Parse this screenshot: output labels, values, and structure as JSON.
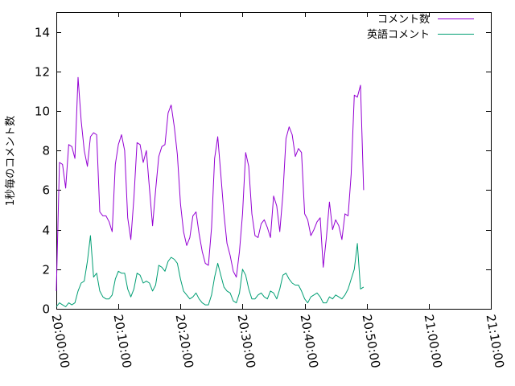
{
  "chart_data": {
    "type": "line",
    "ylabel": "1秒毎のコメント数",
    "xlim": [
      "20:00:00",
      "21:10:00"
    ],
    "ylim": [
      0,
      15
    ],
    "x_ticks": [
      "20:00:00",
      "20:10:00",
      "20:20:00",
      "20:30:00",
      "20:40:00",
      "20:50:00",
      "21:00:00",
      "21:10:00"
    ],
    "y_ticks": [
      0,
      2,
      4,
      6,
      8,
      10,
      12,
      14
    ],
    "grid": false,
    "legend_position": "top-right",
    "series": [
      {
        "name": "コメント数",
        "color": "#9400d3",
        "points": [
          [
            "20:00:00",
            0.9
          ],
          [
            "20:00:30",
            7.4
          ],
          [
            "20:01:00",
            7.3
          ],
          [
            "20:01:30",
            6.1
          ],
          [
            "20:02:00",
            8.3
          ],
          [
            "20:02:30",
            8.2
          ],
          [
            "20:03:00",
            7.6
          ],
          [
            "20:03:30",
            11.7
          ],
          [
            "20:04:00",
            9.5
          ],
          [
            "20:04:30",
            8.0
          ],
          [
            "20:05:00",
            7.2
          ],
          [
            "20:05:30",
            8.7
          ],
          [
            "20:06:00",
            8.9
          ],
          [
            "20:06:30",
            8.8
          ],
          [
            "20:07:00",
            4.9
          ],
          [
            "20:07:30",
            4.7
          ],
          [
            "20:08:00",
            4.7
          ],
          [
            "20:08:30",
            4.4
          ],
          [
            "20:09:00",
            3.9
          ],
          [
            "20:09:30",
            7.3
          ],
          [
            "20:10:00",
            8.3
          ],
          [
            "20:10:30",
            8.8
          ],
          [
            "20:11:00",
            8.0
          ],
          [
            "20:11:30",
            4.6
          ],
          [
            "20:12:00",
            3.5
          ],
          [
            "20:12:30",
            5.6
          ],
          [
            "20:13:00",
            8.4
          ],
          [
            "20:13:30",
            8.3
          ],
          [
            "20:14:00",
            7.4
          ],
          [
            "20:14:30",
            8.0
          ],
          [
            "20:15:00",
            6.1
          ],
          [
            "20:15:30",
            4.2
          ],
          [
            "20:16:00",
            6.0
          ],
          [
            "20:16:30",
            7.7
          ],
          [
            "20:17:00",
            8.2
          ],
          [
            "20:17:30",
            8.3
          ],
          [
            "20:18:00",
            9.9
          ],
          [
            "20:18:30",
            10.3
          ],
          [
            "20:19:00",
            9.2
          ],
          [
            "20:19:30",
            7.8
          ],
          [
            "20:20:00",
            5.3
          ],
          [
            "20:20:30",
            3.9
          ],
          [
            "20:21:00",
            3.2
          ],
          [
            "20:21:30",
            3.6
          ],
          [
            "20:22:00",
            4.7
          ],
          [
            "20:22:30",
            4.9
          ],
          [
            "20:23:00",
            3.8
          ],
          [
            "20:23:30",
            2.9
          ],
          [
            "20:24:00",
            2.3
          ],
          [
            "20:24:30",
            2.2
          ],
          [
            "20:25:00",
            4.1
          ],
          [
            "20:25:30",
            7.6
          ],
          [
            "20:26:00",
            8.7
          ],
          [
            "20:26:30",
            6.8
          ],
          [
            "20:27:00",
            4.8
          ],
          [
            "20:27:30",
            3.3
          ],
          [
            "20:28:00",
            2.7
          ],
          [
            "20:28:30",
            1.9
          ],
          [
            "20:29:00",
            1.6
          ],
          [
            "20:29:30",
            2.9
          ],
          [
            "20:30:00",
            4.8
          ],
          [
            "20:30:30",
            7.9
          ],
          [
            "20:31:00",
            7.2
          ],
          [
            "20:31:30",
            4.8
          ],
          [
            "20:32:00",
            3.7
          ],
          [
            "20:32:30",
            3.6
          ],
          [
            "20:33:00",
            4.3
          ],
          [
            "20:33:30",
            4.5
          ],
          [
            "20:34:00",
            4.1
          ],
          [
            "20:34:30",
            3.6
          ],
          [
            "20:35:00",
            5.7
          ],
          [
            "20:35:30",
            5.2
          ],
          [
            "20:36:00",
            3.9
          ],
          [
            "20:36:30",
            5.8
          ],
          [
            "20:37:00",
            8.6
          ],
          [
            "20:37:30",
            9.2
          ],
          [
            "20:38:00",
            8.8
          ],
          [
            "20:38:30",
            7.7
          ],
          [
            "20:39:00",
            8.1
          ],
          [
            "20:39:30",
            7.9
          ],
          [
            "20:40:00",
            4.8
          ],
          [
            "20:40:30",
            4.5
          ],
          [
            "20:41:00",
            3.7
          ],
          [
            "20:41:30",
            4.0
          ],
          [
            "20:42:00",
            4.4
          ],
          [
            "20:42:30",
            4.6
          ],
          [
            "20:43:00",
            2.1
          ],
          [
            "20:43:30",
            3.6
          ],
          [
            "20:44:00",
            5.4
          ],
          [
            "20:44:30",
            4.0
          ],
          [
            "20:45:00",
            4.5
          ],
          [
            "20:45:30",
            4.2
          ],
          [
            "20:46:00",
            3.5
          ],
          [
            "20:46:30",
            4.8
          ],
          [
            "20:47:00",
            4.7
          ],
          [
            "20:47:30",
            6.8
          ],
          [
            "20:48:00",
            10.8
          ],
          [
            "20:48:30",
            10.7
          ],
          [
            "20:49:00",
            11.3
          ],
          [
            "20:49:30",
            6.0
          ]
        ]
      },
      {
        "name": "英語コメント",
        "color": "#009e73",
        "points": [
          [
            "20:00:00",
            0.1
          ],
          [
            "20:00:30",
            0.3
          ],
          [
            "20:01:00",
            0.2
          ],
          [
            "20:01:30",
            0.1
          ],
          [
            "20:02:00",
            0.3
          ],
          [
            "20:02:30",
            0.2
          ],
          [
            "20:03:00",
            0.3
          ],
          [
            "20:03:30",
            0.9
          ],
          [
            "20:04:00",
            1.3
          ],
          [
            "20:04:30",
            1.4
          ],
          [
            "20:05:00",
            2.4
          ],
          [
            "20:05:30",
            3.7
          ],
          [
            "20:06:00",
            1.6
          ],
          [
            "20:06:30",
            1.8
          ],
          [
            "20:07:00",
            0.9
          ],
          [
            "20:07:30",
            0.6
          ],
          [
            "20:08:00",
            0.5
          ],
          [
            "20:08:30",
            0.5
          ],
          [
            "20:09:00",
            0.7
          ],
          [
            "20:09:30",
            1.5
          ],
          [
            "20:10:00",
            1.9
          ],
          [
            "20:10:30",
            1.8
          ],
          [
            "20:11:00",
            1.8
          ],
          [
            "20:11:30",
            1.0
          ],
          [
            "20:12:00",
            0.6
          ],
          [
            "20:12:30",
            1.0
          ],
          [
            "20:13:00",
            1.8
          ],
          [
            "20:13:30",
            1.7
          ],
          [
            "20:14:00",
            1.3
          ],
          [
            "20:14:30",
            1.4
          ],
          [
            "20:15:00",
            1.3
          ],
          [
            "20:15:30",
            0.9
          ],
          [
            "20:16:00",
            1.2
          ],
          [
            "20:16:30",
            2.2
          ],
          [
            "20:17:00",
            2.1
          ],
          [
            "20:17:30",
            1.9
          ],
          [
            "20:18:00",
            2.4
          ],
          [
            "20:18:30",
            2.6
          ],
          [
            "20:19:00",
            2.5
          ],
          [
            "20:19:30",
            2.3
          ],
          [
            "20:20:00",
            1.5
          ],
          [
            "20:20:30",
            0.9
          ],
          [
            "20:21:00",
            0.7
          ],
          [
            "20:21:30",
            0.5
          ],
          [
            "20:22:00",
            0.6
          ],
          [
            "20:22:30",
            0.8
          ],
          [
            "20:23:00",
            0.5
          ],
          [
            "20:23:30",
            0.3
          ],
          [
            "20:24:00",
            0.2
          ],
          [
            "20:24:30",
            0.2
          ],
          [
            "20:25:00",
            0.7
          ],
          [
            "20:25:30",
            1.6
          ],
          [
            "20:26:00",
            2.3
          ],
          [
            "20:26:30",
            1.7
          ],
          [
            "20:27:00",
            1.1
          ],
          [
            "20:27:30",
            0.9
          ],
          [
            "20:28:00",
            0.8
          ],
          [
            "20:28:30",
            0.4
          ],
          [
            "20:29:00",
            0.3
          ],
          [
            "20:29:30",
            0.8
          ],
          [
            "20:30:00",
            2.0
          ],
          [
            "20:30:30",
            1.7
          ],
          [
            "20:31:00",
            1.0
          ],
          [
            "20:31:30",
            0.5
          ],
          [
            "20:32:00",
            0.5
          ],
          [
            "20:32:30",
            0.7
          ],
          [
            "20:33:00",
            0.8
          ],
          [
            "20:33:30",
            0.6
          ],
          [
            "20:34:00",
            0.5
          ],
          [
            "20:34:30",
            0.9
          ],
          [
            "20:35:00",
            0.8
          ],
          [
            "20:35:30",
            0.5
          ],
          [
            "20:36:00",
            1.0
          ],
          [
            "20:36:30",
            1.7
          ],
          [
            "20:37:00",
            1.8
          ],
          [
            "20:37:30",
            1.5
          ],
          [
            "20:38:00",
            1.3
          ],
          [
            "20:38:30",
            1.2
          ],
          [
            "20:39:00",
            1.2
          ],
          [
            "20:39:30",
            0.9
          ],
          [
            "20:40:00",
            0.5
          ],
          [
            "20:40:30",
            0.3
          ],
          [
            "20:41:00",
            0.6
          ],
          [
            "20:41:30",
            0.7
          ],
          [
            "20:42:00",
            0.8
          ],
          [
            "20:42:30",
            0.6
          ],
          [
            "20:43:00",
            0.3
          ],
          [
            "20:43:30",
            0.3
          ],
          [
            "20:44:00",
            0.6
          ],
          [
            "20:44:30",
            0.5
          ],
          [
            "20:45:00",
            0.7
          ],
          [
            "20:45:30",
            0.6
          ],
          [
            "20:46:00",
            0.5
          ],
          [
            "20:46:30",
            0.7
          ],
          [
            "20:47:00",
            1.0
          ],
          [
            "20:47:30",
            1.5
          ],
          [
            "20:48:00",
            2.0
          ],
          [
            "20:48:30",
            3.3
          ],
          [
            "20:49:00",
            1.0
          ],
          [
            "20:49:30",
            1.1
          ]
        ]
      }
    ]
  }
}
